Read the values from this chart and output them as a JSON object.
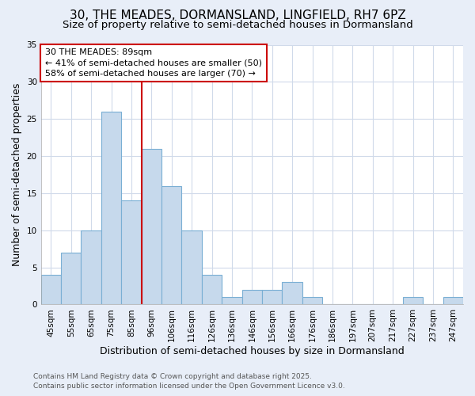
{
  "title_line1": "30, THE MEADES, DORMANSLAND, LINGFIELD, RH7 6PZ",
  "title_line2": "Size of property relative to semi-detached houses in Dormansland",
  "xlabel": "Distribution of semi-detached houses by size in Dormansland",
  "ylabel": "Number of semi-detached properties",
  "categories": [
    "45sqm",
    "55sqm",
    "65sqm",
    "75sqm",
    "85sqm",
    "96sqm",
    "106sqm",
    "116sqm",
    "126sqm",
    "136sqm",
    "146sqm",
    "156sqm",
    "166sqm",
    "176sqm",
    "186sqm",
    "197sqm",
    "207sqm",
    "217sqm",
    "227sqm",
    "237sqm",
    "247sqm"
  ],
  "values": [
    4,
    7,
    10,
    26,
    14,
    21,
    16,
    10,
    4,
    1,
    2,
    2,
    3,
    1,
    0,
    0,
    0,
    0,
    1,
    0,
    1
  ],
  "bar_color": "#c6d9ec",
  "bar_edgecolor": "#7aafd4",
  "vline_x_bin": 4,
  "vline_color": "#cc0000",
  "annotation_title": "30 THE MEADES: 89sqm",
  "annotation_line1": "← 41% of semi-detached houses are smaller (50)",
  "annotation_line2": "58% of semi-detached houses are larger (70) →",
  "annotation_box_edgecolor": "#cc0000",
  "annotation_box_facecolor": "white",
  "ylim": [
    0,
    35
  ],
  "yticks": [
    0,
    5,
    10,
    15,
    20,
    25,
    30,
    35
  ],
  "footnote_line1": "Contains HM Land Registry data © Crown copyright and database right 2025.",
  "footnote_line2": "Contains public sector information licensed under the Open Government Licence v3.0.",
  "plot_bg_color": "white",
  "fig_bg_color": "#e8eef8",
  "grid_color": "#d0daea",
  "title_fontsize": 11,
  "subtitle_fontsize": 9.5,
  "axis_label_fontsize": 9,
  "tick_fontsize": 7.5,
  "annotation_fontsize": 8,
  "footnote_fontsize": 6.5
}
